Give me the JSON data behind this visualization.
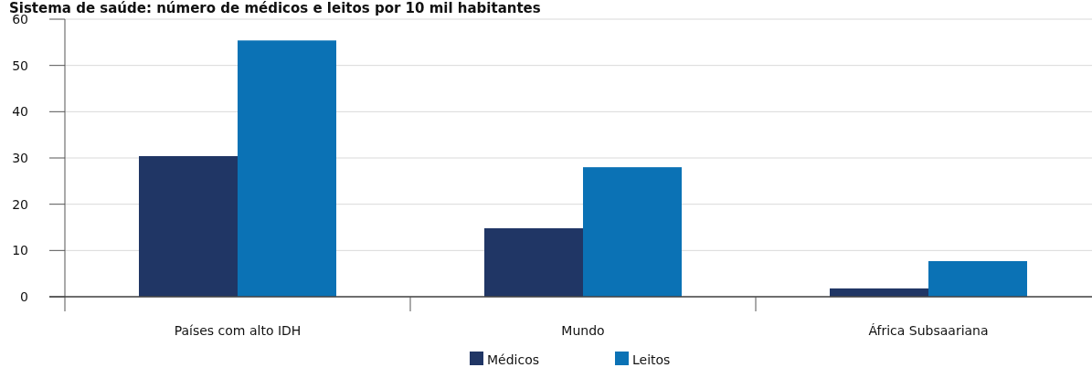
{
  "chart_data": {
    "type": "bar",
    "title": "Sistema de saúde: número de médicos e leitos por 10 mil habitantes",
    "categories": [
      "Países com alto IDH",
      "Mundo",
      "África Subsaariana"
    ],
    "series": [
      {
        "name": "Médicos",
        "color": "#203665",
        "values": [
          30.4,
          14.8,
          1.8
        ]
      },
      {
        "name": "Leitos",
        "color": "#0b72b5",
        "values": [
          55.4,
          28,
          7.7
        ]
      }
    ],
    "ylim": [
      0,
      60
    ],
    "yticks": [
      0,
      10,
      20,
      30,
      40,
      50,
      60
    ],
    "grid": "y",
    "legend": "bottom"
  }
}
